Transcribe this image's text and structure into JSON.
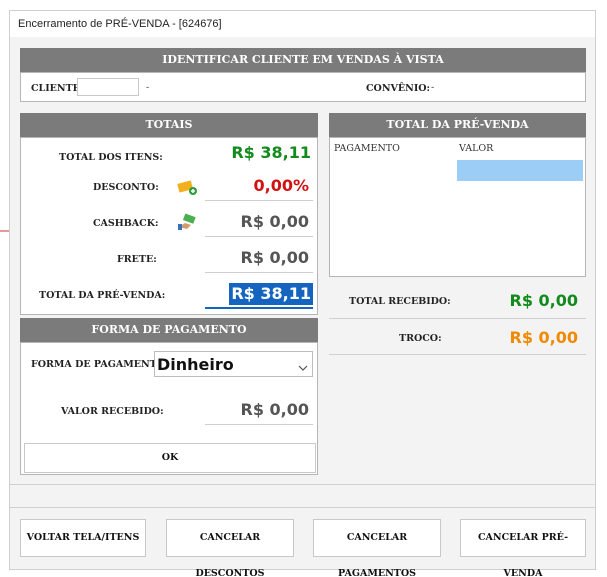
{
  "window": {
    "title": "Encerramento de PRÉ-VENDA  -  [624676]"
  },
  "cliente_panel": {
    "header": "IDENTIFICAR CLIENTE EM VENDAS À VISTA",
    "cliente_label": "CLIENTE:",
    "cliente_value": "",
    "cliente_dash": "-",
    "convenio_label": "CONVÊNIO:",
    "convenio_value": "-"
  },
  "totais": {
    "header": "TOTAIS",
    "total_itens_label": "TOTAL DOS ITENS:",
    "total_itens_value": "R$ 38,11",
    "desconto_label": "DESCONTO:",
    "desconto_value": "0,00%",
    "cashback_label": "CASHBACK:",
    "cashback_value": "R$ 0,00",
    "frete_label": "FRETE:",
    "frete_value": "R$ 0,00",
    "total_pre_venda_label": "TOTAL DA PRÉ-VENDA:",
    "total_pre_venda_value": "R$ 38,11"
  },
  "forma_pagamento": {
    "header": "FORMA DE PAGAMENTO",
    "forma_label": "FORMA DE PAGAMENTO:",
    "forma_selected": "Dinheiro",
    "valor_recebido_label": "VALOR RECEBIDO:",
    "valor_recebido_value": "R$ 0,00",
    "ok_label": "OK"
  },
  "total_pre_venda_panel": {
    "header": "TOTAL DA PRÉ-VENDA",
    "columns": [
      "PAGAMENTO",
      "VALOR"
    ],
    "total_recebido_label": "TOTAL RECEBIDO:",
    "total_recebido_value": "R$ 0,00",
    "troco_label": "TROCO:",
    "troco_value": "R$ 0,00"
  },
  "buttons": {
    "voltar": "VOLTAR TELA/ITENS",
    "cancelar_descontos": "CANCELAR DESCONTOS",
    "cancelar_pagamentos": "CANCELAR PAGAMENTOS",
    "cancelar_pre_venda": "CANCELAR PRÉ-VENDA"
  },
  "colors": {
    "header_gray": "#7b7b7b",
    "green": "#138a1c",
    "red": "#d21212",
    "orange": "#f08a00",
    "selection_blue": "#1565c0",
    "grid_selection": "#9ccdf7"
  },
  "icons": [
    "discount-tag-icon",
    "cashback-hand-icon",
    "chevron-down-icon",
    "arrow-indicator-icon"
  ]
}
